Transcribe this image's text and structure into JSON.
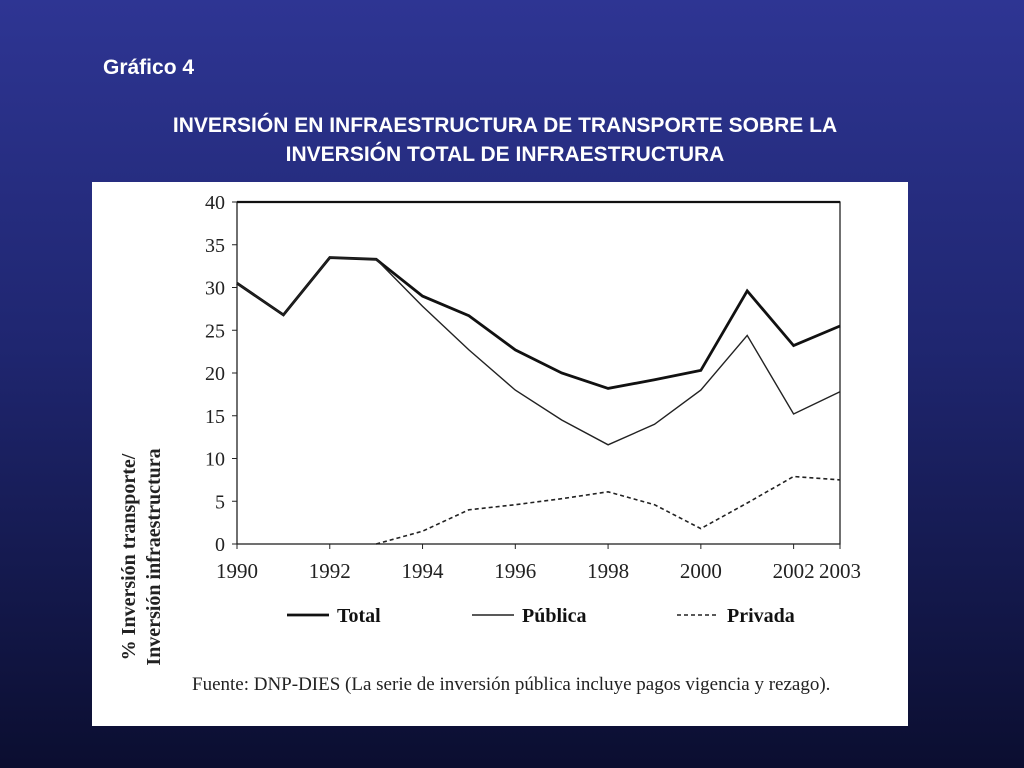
{
  "slide": {
    "label": "Gráfico 4",
    "title_line1": "INVERSIÓN EN INFRAESTRUCTURA DE TRANSPORTE SOBRE LA",
    "title_line2": "INVERSIÓN TOTAL DE INFRAESTRUCTURA"
  },
  "chart_data": {
    "type": "line",
    "ylabel_line1": "% Inversión transporte/",
    "ylabel_line2": "Inversión infraestructura",
    "ylim": [
      0,
      40
    ],
    "yticks": [
      0,
      5,
      10,
      15,
      20,
      25,
      30,
      35,
      40
    ],
    "xlim": [
      1990,
      2003
    ],
    "xticks": [
      1990,
      1992,
      1994,
      1996,
      1998,
      2000,
      2002,
      2003
    ],
    "grid": false,
    "legend_position": "bottom",
    "series": [
      {
        "name": "Total",
        "style": "bold-solid",
        "x": [
          1990,
          1991,
          1992,
          1993,
          1994,
          1995,
          1996,
          1997,
          1998,
          1999,
          2000,
          2001,
          2002,
          2003
        ],
        "y": [
          30.5,
          26.8,
          33.5,
          33.3,
          29.0,
          26.7,
          22.7,
          20.0,
          18.2,
          19.2,
          20.3,
          29.6,
          23.2,
          25.5
        ]
      },
      {
        "name": "Pública",
        "style": "solid",
        "x": [
          1990,
          1991,
          1992,
          1993,
          1994,
          1995,
          1996,
          1997,
          1998,
          1999,
          2000,
          2001,
          2002,
          2003
        ],
        "y": [
          30.5,
          26.8,
          33.5,
          33.3,
          27.8,
          22.7,
          18.0,
          14.5,
          11.6,
          14.0,
          18.0,
          24.4,
          15.2,
          17.8
        ]
      },
      {
        "name": "Privada",
        "style": "dashed",
        "x": [
          1993,
          1994,
          1995,
          1996,
          1997,
          1998,
          1999,
          2000,
          2001,
          2002,
          2003
        ],
        "y": [
          0.0,
          1.5,
          4.0,
          4.6,
          5.3,
          6.1,
          4.6,
          1.8,
          4.8,
          7.9,
          7.5
        ]
      }
    ],
    "source_note": "Fuente: DNP-DIES (La serie de inversión pública incluye pagos vigencia y rezago)."
  }
}
